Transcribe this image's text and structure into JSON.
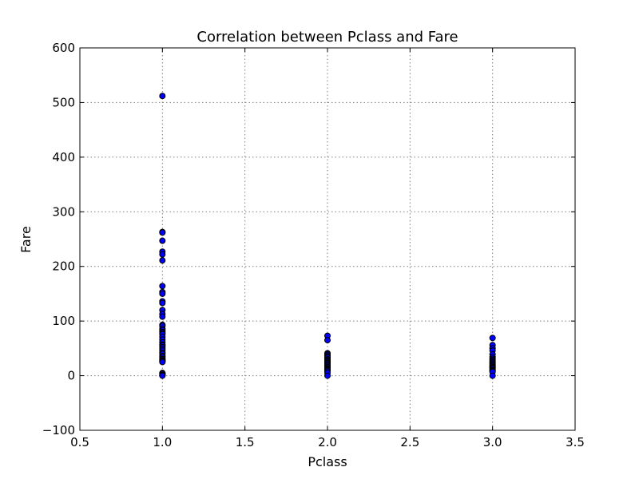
{
  "chart_data": {
    "type": "scatter",
    "title": "Correlation between Pclass and Fare",
    "xlabel": "Pclass",
    "ylabel": "Fare",
    "xlim": [
      0.5,
      3.5
    ],
    "ylim": [
      -100,
      600
    ],
    "xticks": [
      0.5,
      1.0,
      1.5,
      2.0,
      2.5,
      3.0,
      3.5
    ],
    "yticks": [
      -100,
      0,
      100,
      200,
      300,
      400,
      500,
      600
    ],
    "xtick_labels": [
      "0.5",
      "1.0",
      "1.5",
      "2.0",
      "2.5",
      "3.0",
      "3.5"
    ],
    "ytick_labels": [
      "−100",
      "0",
      "100",
      "200",
      "300",
      "400",
      "500",
      "600"
    ],
    "grid": true,
    "marker_color": "#0000ff",
    "series": [
      {
        "x": [
          1,
          1,
          1,
          1,
          1,
          1,
          1,
          1,
          1,
          1,
          1,
          1,
          1,
          1,
          1,
          1,
          1,
          1,
          1,
          1,
          1,
          1,
          1,
          1,
          1,
          1,
          1,
          1,
          1,
          1,
          1,
          1,
          1,
          1,
          1,
          1,
          1,
          1,
          1,
          1,
          1,
          1,
          1,
          1,
          1
        ],
        "y": [
          512,
          263,
          262,
          247,
          227,
          222,
          211,
          164,
          153,
          150,
          136,
          133,
          120,
          113,
          108,
          93,
          91,
          86,
          83,
          80,
          78,
          76,
          71,
          66,
          61,
          57,
          55,
          52,
          49,
          46,
          42,
          40,
          36,
          34,
          31,
          30,
          28,
          27,
          26,
          25,
          5,
          4,
          3,
          1,
          0
        ]
      },
      {
        "x": [
          2,
          2,
          2,
          2,
          2,
          2,
          2,
          2,
          2,
          2,
          2,
          2,
          2,
          2,
          2,
          2,
          2,
          2,
          2,
          2,
          2,
          2,
          2,
          2,
          2
        ],
        "y": [
          73,
          65,
          41,
          39,
          37,
          35,
          33,
          30,
          29,
          27,
          26,
          24,
          23,
          21,
          20,
          18,
          16,
          15,
          13,
          12,
          11,
          10,
          8,
          5,
          0
        ]
      },
      {
        "x": [
          3,
          3,
          3,
          3,
          3,
          3,
          3,
          3,
          3,
          3,
          3,
          3,
          3,
          3,
          3,
          3,
          3,
          3,
          3,
          3,
          3,
          3,
          3,
          3
        ],
        "y": [
          69,
          56,
          50,
          46,
          39,
          34,
          31,
          29,
          27,
          25,
          24,
          22,
          20,
          19,
          17,
          16,
          15,
          14,
          12,
          10,
          9,
          8,
          7,
          0
        ]
      }
    ]
  }
}
